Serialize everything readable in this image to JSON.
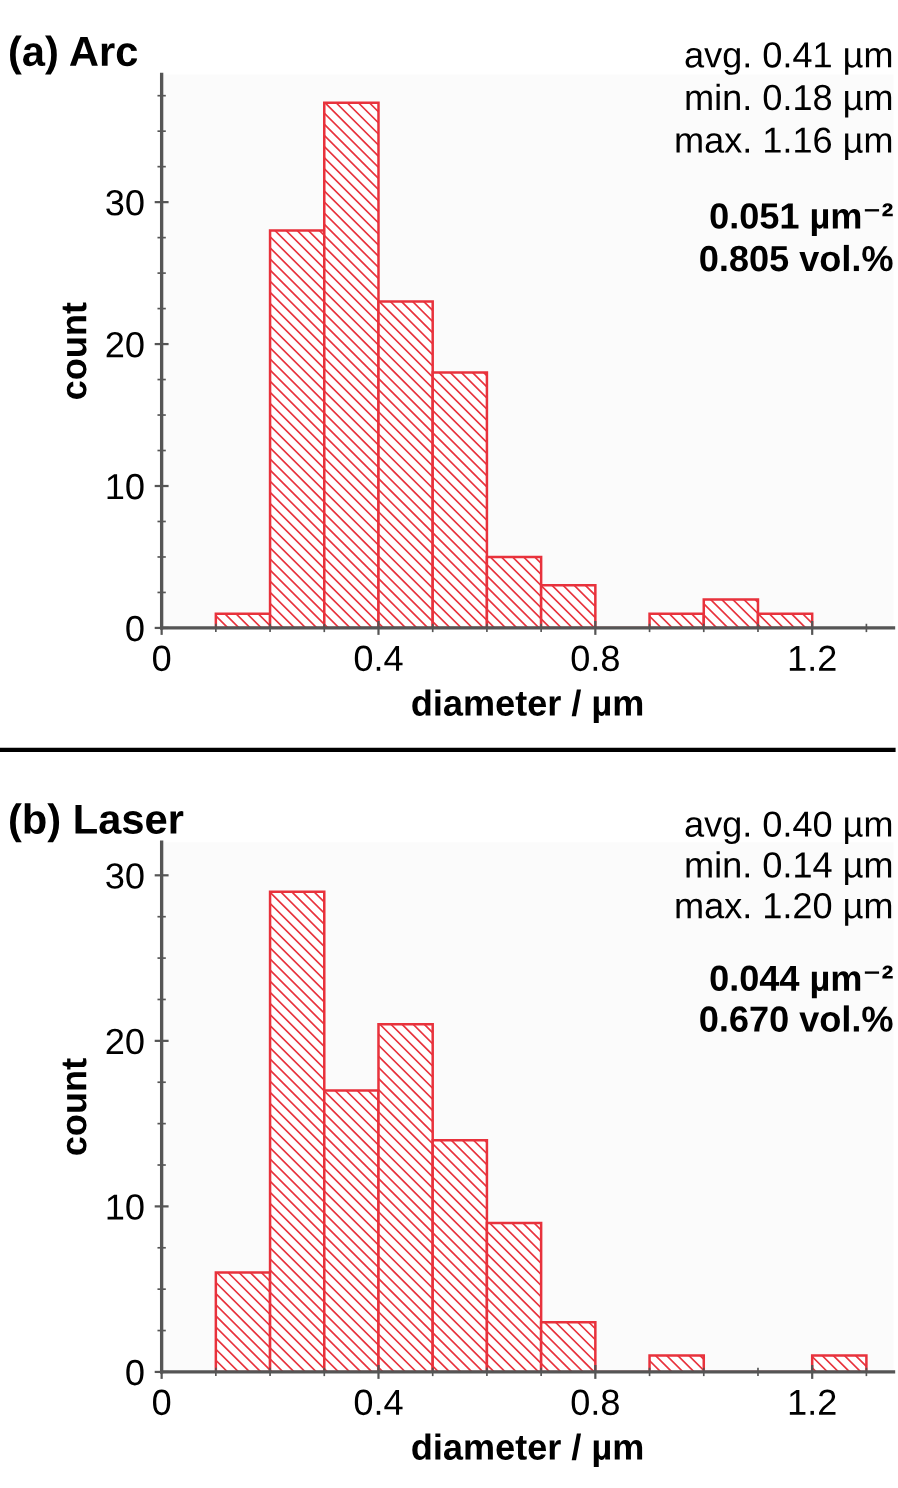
{
  "chart_data": [
    {
      "type": "histogram",
      "title": "(a) Arc",
      "xlabel": "diameter / µm",
      "ylabel": "count",
      "color": "#e8323c",
      "bins": [
        0.1,
        0.2,
        0.3,
        0.4,
        0.5,
        0.6,
        0.7,
        0.8,
        0.9,
        1.0,
        1.1,
        1.2
      ],
      "values": [
        1,
        28,
        37,
        23,
        18,
        5,
        3,
        0,
        1,
        2,
        1
      ],
      "xlim": [
        0,
        1.35
      ],
      "xticks": [
        0,
        0.4,
        0.8,
        1.2
      ],
      "ylim": [
        0,
        39
      ],
      "yticks": [
        0,
        10,
        20,
        30
      ],
      "grid": false,
      "annotations": [
        "avg. 0.41 µm",
        "min. 0.18 µm",
        "max. 1.16 µm",
        "0.051 µm⁻²",
        "0.805 vol.%"
      ]
    },
    {
      "type": "histogram",
      "title": "(b) Laser",
      "xlabel": "diameter / µm",
      "ylabel": "count",
      "color": "#e8323c",
      "bins": [
        0.1,
        0.2,
        0.3,
        0.4,
        0.5,
        0.6,
        0.7,
        0.8,
        0.9,
        1.0,
        1.1,
        1.2,
        1.3
      ],
      "values": [
        6,
        29,
        17,
        21,
        14,
        9,
        3,
        0,
        1,
        0,
        0,
        1
      ],
      "xlim": [
        0,
        1.35
      ],
      "xticks": [
        0,
        0.4,
        0.8,
        1.2
      ],
      "ylim": [
        0,
        32
      ],
      "yticks": [
        0,
        10,
        20,
        30
      ],
      "grid": false,
      "annotations": [
        "avg. 0.40 µm",
        "min. 0.14 µm",
        "max. 1.20 µm",
        "0.044 µm⁻²",
        "0.670 vol.%"
      ]
    }
  ]
}
